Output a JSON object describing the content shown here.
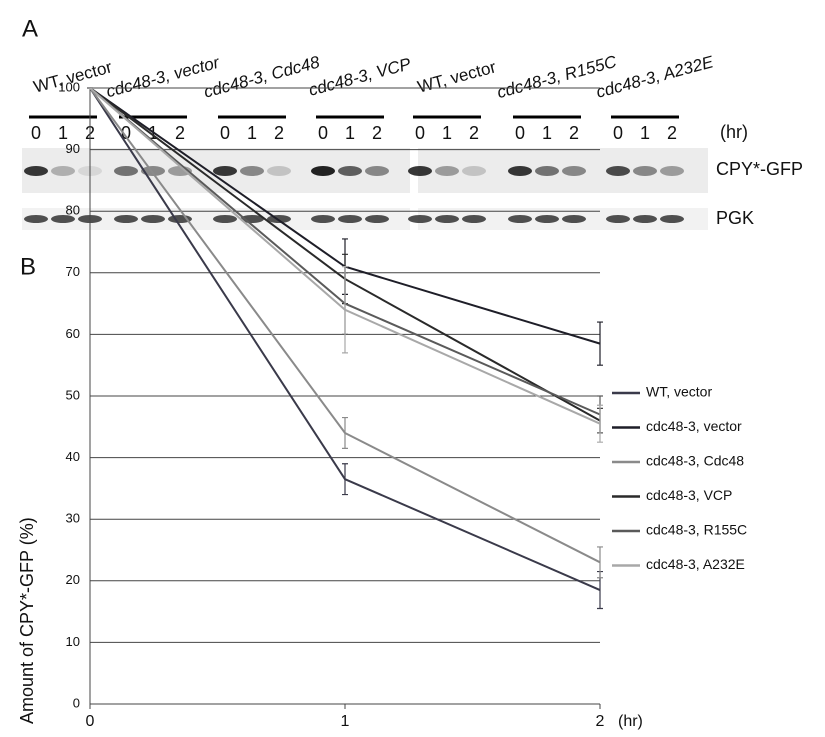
{
  "panel_a": {
    "label": "A",
    "lanes": [
      "WT, vector",
      "cdc48-3, vector",
      "cdc48-3, Cdc48",
      "cdc48-3, VCP",
      "WT, vector",
      "cdc48-3, R155C",
      "cdc48-3, A232E"
    ],
    "times": [
      "0",
      "1",
      "2"
    ],
    "time_unit": "(hr)",
    "rows": [
      "CPY*-GFP",
      "PGK"
    ]
  },
  "chart_data": {
    "type": "line",
    "panel_label": "B",
    "ylabel": "Amount of CPY*-GFP (%)",
    "x_unit": "(hr)",
    "x": [
      0,
      1,
      2
    ],
    "xlim": [
      0,
      2
    ],
    "xticks": [
      0,
      1,
      2
    ],
    "ylim": [
      0,
      100
    ],
    "yticks": [
      0,
      10,
      20,
      30,
      40,
      50,
      60,
      70,
      80,
      90,
      100
    ],
    "grid": true,
    "series": [
      {
        "name": "WT, vector",
        "color": "#3a3a4a",
        "values": [
          100,
          36.5,
          18.5
        ],
        "errors": [
          0,
          2.5,
          3
        ]
      },
      {
        "name": "cdc48-3, vector",
        "color": "#1e1e28",
        "values": [
          100,
          71,
          58.5
        ],
        "errors": [
          0,
          4.5,
          3.5
        ]
      },
      {
        "name": "cdc48-3, Cdc48",
        "color": "#8a8a8a",
        "values": [
          100,
          44,
          23
        ],
        "errors": [
          0,
          2.5,
          2.5
        ]
      },
      {
        "name": "cdc48-3, VCP",
        "color": "#2a2a2a",
        "values": [
          100,
          69,
          46
        ],
        "errors": [
          0,
          4,
          2
        ]
      },
      {
        "name": "cdc48-3, R155C",
        "color": "#5a5a5a",
        "values": [
          100,
          65,
          47
        ],
        "errors": [
          0,
          5,
          3
        ]
      },
      {
        "name": "cdc48-3, A232E",
        "color": "#a8a8a8",
        "values": [
          100,
          64,
          45.5
        ],
        "errors": [
          0,
          7,
          3
        ]
      }
    ]
  }
}
